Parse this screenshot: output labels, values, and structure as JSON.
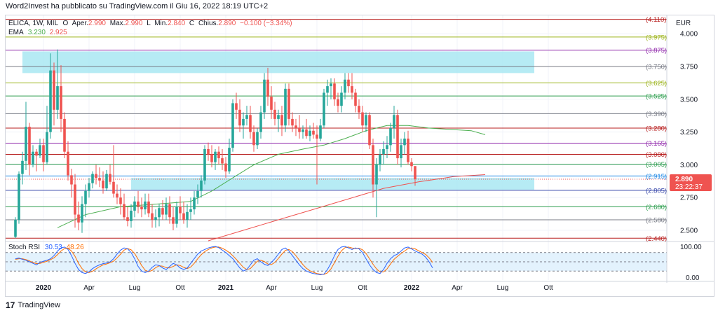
{
  "header": {
    "publisher_text": "Word2Invest ha pubblicato su TradingView.com il Giu 16, 2022 18:19 UTC+2",
    "symbol_line": "ELICA, 1W, MIL",
    "ohlc": {
      "o_label": "O",
      "open_label": "Aper.",
      "open": "2.990",
      "max_label": "Max.",
      "high": "2.990",
      "l_label": "L",
      "min_label": "Min.",
      "low": "2.840",
      "c_label": "C",
      "close_label": "Chius.",
      "close": "2.890",
      "change": "−0.100 (−3.34%)"
    },
    "ema": {
      "label": "EMA",
      "v1": "3.230",
      "v2": "2.925"
    },
    "stoch": {
      "label": "Stoch RSI",
      "k": "30.53",
      "d": "48.26"
    }
  },
  "footer": {
    "brand": "TradingView",
    "logo_glyph": "17"
  },
  "colors": {
    "up": "#26a69a",
    "down": "#ef5350",
    "zone": "#a9e7f2",
    "ema_fast": "#4caf50",
    "ema_slow": "#ef5350",
    "stoch_k": "#2962ff",
    "stoch_d": "#ff6d00",
    "stoch_band": "#e3f2fd",
    "grid": "#f0f3fa",
    "axis_text": "#131722"
  },
  "chart_data": {
    "type": "candlestick",
    "currency_label": "EUR",
    "price_axis_ticks": [
      2.5,
      2.75,
      3.0,
      3.25,
      3.5,
      3.75,
      4.0
    ],
    "price_axis_labels": [
      "2.500",
      "2.750",
      "3.000",
      "3.250",
      "3.500",
      "3.750",
      "4.000"
    ],
    "ylim": [
      2.42,
      4.14
    ],
    "time_labels": [
      {
        "label": "2020",
        "bar": 8,
        "bold": true
      },
      {
        "label": "Apr",
        "bar": 21
      },
      {
        "label": "Lug",
        "bar": 34
      },
      {
        "label": "Ott",
        "bar": 47
      },
      {
        "label": "2021",
        "bar": 60,
        "bold": true
      },
      {
        "label": "Apr",
        "bar": 73
      },
      {
        "label": "Lug",
        "bar": 86
      },
      {
        "label": "Ott",
        "bar": 99
      },
      {
        "label": "2022",
        "bar": 113,
        "bold": true
      },
      {
        "label": "Apr",
        "bar": 126
      },
      {
        "label": "Lug",
        "bar": 139
      },
      {
        "label": "Ott",
        "bar": 152
      }
    ],
    "levels": [
      {
        "value": 4.11,
        "label": "(4.110)",
        "color": "#b71c1c"
      },
      {
        "value": 3.975,
        "label": "(3.975)",
        "color": "#9cb31a"
      },
      {
        "value": 3.875,
        "label": "(3.875)",
        "color": "#8e24aa"
      },
      {
        "value": 3.75,
        "label": "(3.750)",
        "color": "#787b86"
      },
      {
        "value": 3.625,
        "label": "(3.625)",
        "color": "#9cb31a"
      },
      {
        "value": 3.525,
        "label": "(3.525)",
        "color": "#2e9e4f"
      },
      {
        "value": 3.39,
        "label": "(3.390)",
        "color": "#787b86"
      },
      {
        "value": 3.28,
        "label": "(3.280)",
        "color": "#b71c1c"
      },
      {
        "value": 3.165,
        "label": "(3.165)",
        "color": "#8e24aa"
      },
      {
        "value": 3.08,
        "label": "(3.080)",
        "color": "#b71c1c"
      },
      {
        "value": 3.005,
        "label": "(3.005)",
        "color": "#2e9e4f"
      },
      {
        "value": 2.915,
        "label": "(2.915)",
        "color": "#1e88e5"
      },
      {
        "value": 2.805,
        "label": "(2.805)",
        "color": "#3949ab"
      },
      {
        "value": 2.68,
        "label": "(2.680)",
        "color": "#2e9e4f"
      },
      {
        "value": 2.58,
        "label": "(2.580)",
        "color": "#787b86"
      },
      {
        "value": 2.44,
        "label": "(2.440)",
        "color": "#b71c1c"
      }
    ],
    "zones": [
      {
        "from_bar": 2,
        "to_bar": 148,
        "low": 3.7,
        "high": 3.865
      },
      {
        "from_bar": 33,
        "to_bar": 148,
        "low": 2.81,
        "high": 2.9
      }
    ],
    "current_price": {
      "value": 2.89,
      "label": "2.890",
      "countdown": "23:22:37"
    },
    "bars": [
      {
        "o": 2.45,
        "h": 2.6,
        "l": 2.44,
        "c": 2.58
      },
      {
        "o": 2.58,
        "h": 2.95,
        "l": 2.55,
        "c": 2.93
      },
      {
        "o": 2.93,
        "h": 3.1,
        "l": 2.85,
        "c": 3.03
      },
      {
        "o": 3.03,
        "h": 3.48,
        "l": 2.96,
        "c": 3.29
      },
      {
        "o": 3.29,
        "h": 3.32,
        "l": 2.92,
        "c": 3.0
      },
      {
        "o": 3.0,
        "h": 3.15,
        "l": 2.98,
        "c": 3.1
      },
      {
        "o": 3.1,
        "h": 3.12,
        "l": 2.95,
        "c": 3.07
      },
      {
        "o": 3.07,
        "h": 3.2,
        "l": 3.05,
        "c": 3.15
      },
      {
        "o": 3.15,
        "h": 3.2,
        "l": 2.95,
        "c": 3.02
      },
      {
        "o": 3.02,
        "h": 3.45,
        "l": 3.0,
        "c": 3.25
      },
      {
        "o": 3.25,
        "h": 3.85,
        "l": 3.2,
        "c": 3.72
      },
      {
        "o": 3.72,
        "h": 3.78,
        "l": 3.3,
        "c": 3.42
      },
      {
        "o": 3.42,
        "h": 3.88,
        "l": 3.35,
        "c": 3.6
      },
      {
        "o": 3.6,
        "h": 3.76,
        "l": 3.25,
        "c": 3.35
      },
      {
        "o": 3.35,
        "h": 3.4,
        "l": 3.05,
        "c": 3.1
      },
      {
        "o": 3.1,
        "h": 3.18,
        "l": 2.88,
        "c": 2.92
      },
      {
        "o": 2.92,
        "h": 2.97,
        "l": 2.75,
        "c": 2.85
      },
      {
        "o": 2.85,
        "h": 2.93,
        "l": 2.52,
        "c": 2.62
      },
      {
        "o": 2.62,
        "h": 2.72,
        "l": 2.5,
        "c": 2.56
      },
      {
        "o": 2.56,
        "h": 2.76,
        "l": 2.48,
        "c": 2.7
      },
      {
        "o": 2.7,
        "h": 2.85,
        "l": 2.6,
        "c": 2.8
      },
      {
        "o": 2.8,
        "h": 2.9,
        "l": 2.75,
        "c": 2.86
      },
      {
        "o": 2.86,
        "h": 2.95,
        "l": 2.82,
        "c": 2.93
      },
      {
        "o": 2.93,
        "h": 3.0,
        "l": 2.85,
        "c": 2.9
      },
      {
        "o": 2.9,
        "h": 2.98,
        "l": 2.83,
        "c": 2.88
      },
      {
        "o": 2.88,
        "h": 2.95,
        "l": 2.78,
        "c": 2.82
      },
      {
        "o": 2.82,
        "h": 2.96,
        "l": 2.8,
        "c": 2.93
      },
      {
        "o": 2.93,
        "h": 3.0,
        "l": 2.85,
        "c": 2.87
      },
      {
        "o": 2.87,
        "h": 3.15,
        "l": 2.75,
        "c": 2.78
      },
      {
        "o": 2.78,
        "h": 2.85,
        "l": 2.7,
        "c": 2.75
      },
      {
        "o": 2.75,
        "h": 2.82,
        "l": 2.62,
        "c": 2.7
      },
      {
        "o": 2.7,
        "h": 2.78,
        "l": 2.58,
        "c": 2.6
      },
      {
        "o": 2.6,
        "h": 2.68,
        "l": 2.53,
        "c": 2.57
      },
      {
        "o": 2.57,
        "h": 2.7,
        "l": 2.52,
        "c": 2.65
      },
      {
        "o": 2.65,
        "h": 2.76,
        "l": 2.6,
        "c": 2.72
      },
      {
        "o": 2.72,
        "h": 2.8,
        "l": 2.63,
        "c": 2.68
      },
      {
        "o": 2.68,
        "h": 2.75,
        "l": 2.6,
        "c": 2.66
      },
      {
        "o": 2.66,
        "h": 2.78,
        "l": 2.62,
        "c": 2.72
      },
      {
        "o": 2.72,
        "h": 2.78,
        "l": 2.6,
        "c": 2.63
      },
      {
        "o": 2.63,
        "h": 2.7,
        "l": 2.52,
        "c": 2.58
      },
      {
        "o": 2.58,
        "h": 2.66,
        "l": 2.52,
        "c": 2.6
      },
      {
        "o": 2.6,
        "h": 2.7,
        "l": 2.53,
        "c": 2.67
      },
      {
        "o": 2.67,
        "h": 2.73,
        "l": 2.58,
        "c": 2.62
      },
      {
        "o": 2.62,
        "h": 2.75,
        "l": 2.58,
        "c": 2.7
      },
      {
        "o": 2.7,
        "h": 2.76,
        "l": 2.55,
        "c": 2.6
      },
      {
        "o": 2.6,
        "h": 2.68,
        "l": 2.5,
        "c": 2.55
      },
      {
        "o": 2.55,
        "h": 2.72,
        "l": 2.52,
        "c": 2.68
      },
      {
        "o": 2.68,
        "h": 2.76,
        "l": 2.58,
        "c": 2.63
      },
      {
        "o": 2.63,
        "h": 2.72,
        "l": 2.55,
        "c": 2.58
      },
      {
        "o": 2.58,
        "h": 2.7,
        "l": 2.52,
        "c": 2.64
      },
      {
        "o": 2.64,
        "h": 2.75,
        "l": 2.58,
        "c": 2.66
      },
      {
        "o": 2.66,
        "h": 2.8,
        "l": 2.62,
        "c": 2.75
      },
      {
        "o": 2.75,
        "h": 2.85,
        "l": 2.7,
        "c": 2.8
      },
      {
        "o": 2.8,
        "h": 2.92,
        "l": 2.75,
        "c": 2.88
      },
      {
        "o": 2.88,
        "h": 3.15,
        "l": 2.85,
        "c": 3.12
      },
      {
        "o": 3.12,
        "h": 3.17,
        "l": 3.03,
        "c": 3.08
      },
      {
        "o": 3.08,
        "h": 3.15,
        "l": 2.98,
        "c": 3.02
      },
      {
        "o": 3.02,
        "h": 3.12,
        "l": 2.96,
        "c": 3.1
      },
      {
        "o": 3.1,
        "h": 3.14,
        "l": 3.0,
        "c": 3.05
      },
      {
        "o": 3.05,
        "h": 3.12,
        "l": 2.96,
        "c": 3.01
      },
      {
        "o": 3.01,
        "h": 3.06,
        "l": 2.9,
        "c": 2.95
      },
      {
        "o": 2.95,
        "h": 3.2,
        "l": 2.93,
        "c": 3.13
      },
      {
        "o": 3.13,
        "h": 3.5,
        "l": 3.1,
        "c": 3.47
      },
      {
        "o": 3.47,
        "h": 3.55,
        "l": 3.35,
        "c": 3.42
      },
      {
        "o": 3.42,
        "h": 3.5,
        "l": 3.25,
        "c": 3.3
      },
      {
        "o": 3.3,
        "h": 3.4,
        "l": 3.2,
        "c": 3.35
      },
      {
        "o": 3.35,
        "h": 3.45,
        "l": 3.3,
        "c": 3.38
      },
      {
        "o": 3.38,
        "h": 3.45,
        "l": 3.2,
        "c": 3.25
      },
      {
        "o": 3.25,
        "h": 3.3,
        "l": 3.1,
        "c": 3.15
      },
      {
        "o": 3.15,
        "h": 3.28,
        "l": 3.12,
        "c": 3.25
      },
      {
        "o": 3.25,
        "h": 3.45,
        "l": 3.2,
        "c": 3.4
      },
      {
        "o": 3.4,
        "h": 3.7,
        "l": 3.35,
        "c": 3.65
      },
      {
        "o": 3.65,
        "h": 3.74,
        "l": 3.45,
        "c": 3.52
      },
      {
        "o": 3.52,
        "h": 3.6,
        "l": 3.35,
        "c": 3.42
      },
      {
        "o": 3.42,
        "h": 3.48,
        "l": 3.3,
        "c": 3.35
      },
      {
        "o": 3.35,
        "h": 3.42,
        "l": 3.25,
        "c": 3.38
      },
      {
        "o": 3.38,
        "h": 3.45,
        "l": 3.22,
        "c": 3.3
      },
      {
        "o": 3.3,
        "h": 3.62,
        "l": 3.25,
        "c": 3.58
      },
      {
        "o": 3.58,
        "h": 3.62,
        "l": 3.3,
        "c": 3.35
      },
      {
        "o": 3.35,
        "h": 3.4,
        "l": 3.25,
        "c": 3.3
      },
      {
        "o": 3.3,
        "h": 3.35,
        "l": 3.22,
        "c": 3.28
      },
      {
        "o": 3.28,
        "h": 3.38,
        "l": 3.2,
        "c": 3.25
      },
      {
        "o": 3.25,
        "h": 3.3,
        "l": 3.2,
        "c": 3.27
      },
      {
        "o": 3.27,
        "h": 3.35,
        "l": 3.2,
        "c": 3.22
      },
      {
        "o": 3.22,
        "h": 3.3,
        "l": 3.18,
        "c": 3.26
      },
      {
        "o": 3.26,
        "h": 3.32,
        "l": 3.2,
        "c": 3.23
      },
      {
        "o": 3.23,
        "h": 3.3,
        "l": 2.85,
        "c": 3.2
      },
      {
        "o": 3.2,
        "h": 3.35,
        "l": 3.18,
        "c": 3.3
      },
      {
        "o": 3.3,
        "h": 3.58,
        "l": 3.28,
        "c": 3.55
      },
      {
        "o": 3.55,
        "h": 3.65,
        "l": 3.45,
        "c": 3.6
      },
      {
        "o": 3.6,
        "h": 3.66,
        "l": 3.5,
        "c": 3.62
      },
      {
        "o": 3.62,
        "h": 3.66,
        "l": 3.45,
        "c": 3.5
      },
      {
        "o": 3.5,
        "h": 3.55,
        "l": 3.4,
        "c": 3.45
      },
      {
        "o": 3.45,
        "h": 3.6,
        "l": 3.4,
        "c": 3.55
      },
      {
        "o": 3.55,
        "h": 3.7,
        "l": 3.5,
        "c": 3.65
      },
      {
        "o": 3.65,
        "h": 3.7,
        "l": 3.55,
        "c": 3.6
      },
      {
        "o": 3.6,
        "h": 3.7,
        "l": 3.5,
        "c": 3.55
      },
      {
        "o": 3.55,
        "h": 3.58,
        "l": 3.4,
        "c": 3.45
      },
      {
        "o": 3.45,
        "h": 3.5,
        "l": 3.35,
        "c": 3.4
      },
      {
        "o": 3.4,
        "h": 3.45,
        "l": 3.25,
        "c": 3.3
      },
      {
        "o": 3.3,
        "h": 3.4,
        "l": 3.25,
        "c": 3.38
      },
      {
        "o": 3.38,
        "h": 3.4,
        "l": 3.12,
        "c": 3.15
      },
      {
        "o": 3.15,
        "h": 3.2,
        "l": 2.75,
        "c": 2.85
      },
      {
        "o": 2.85,
        "h": 3.05,
        "l": 2.6,
        "c": 3.0
      },
      {
        "o": 3.0,
        "h": 3.12,
        "l": 2.95,
        "c": 3.08
      },
      {
        "o": 3.08,
        "h": 3.18,
        "l": 3.0,
        "c": 3.12
      },
      {
        "o": 3.12,
        "h": 3.22,
        "l": 3.05,
        "c": 3.15
      },
      {
        "o": 3.15,
        "h": 3.32,
        "l": 3.1,
        "c": 3.28
      },
      {
        "o": 3.28,
        "h": 3.45,
        "l": 3.2,
        "c": 3.38
      },
      {
        "o": 3.38,
        "h": 3.42,
        "l": 3.0,
        "c": 3.05
      },
      {
        "o": 3.05,
        "h": 3.2,
        "l": 2.98,
        "c": 3.15
      },
      {
        "o": 3.15,
        "h": 3.25,
        "l": 3.08,
        "c": 3.2
      },
      {
        "o": 3.2,
        "h": 3.26,
        "l": 3.0,
        "c": 3.02
      },
      {
        "o": 3.02,
        "h": 3.05,
        "l": 2.95,
        "c": 2.99
      },
      {
        "o": 2.99,
        "h": 2.99,
        "l": 2.84,
        "c": 2.89
      }
    ],
    "ema_fast_label": "EMA 3.230",
    "ema_slow_label": "EMA 2.925",
    "ema_fast": [
      {
        "bar": 12,
        "v": 2.52
      },
      {
        "bar": 20,
        "v": 2.62
      },
      {
        "bar": 30,
        "v": 2.68
      },
      {
        "bar": 40,
        "v": 2.7
      },
      {
        "bar": 50,
        "v": 2.72
      },
      {
        "bar": 56,
        "v": 2.8
      },
      {
        "bar": 62,
        "v": 2.9
      },
      {
        "bar": 68,
        "v": 3.0
      },
      {
        "bar": 75,
        "v": 3.08
      },
      {
        "bar": 82,
        "v": 3.12
      },
      {
        "bar": 88,
        "v": 3.15
      },
      {
        "bar": 94,
        "v": 3.2
      },
      {
        "bar": 100,
        "v": 3.26
      },
      {
        "bar": 106,
        "v": 3.3
      },
      {
        "bar": 112,
        "v": 3.3
      },
      {
        "bar": 118,
        "v": 3.28
      },
      {
        "bar": 124,
        "v": 3.27
      },
      {
        "bar": 130,
        "v": 3.26
      },
      {
        "bar": 134,
        "v": 3.23
      }
    ],
    "ema_slow": [
      {
        "bar": 55,
        "v": 2.42
      },
      {
        "bar": 65,
        "v": 2.5
      },
      {
        "bar": 75,
        "v": 2.58
      },
      {
        "bar": 85,
        "v": 2.66
      },
      {
        "bar": 95,
        "v": 2.74
      },
      {
        "bar": 105,
        "v": 2.82
      },
      {
        "bar": 115,
        "v": 2.87
      },
      {
        "bar": 125,
        "v": 2.91
      },
      {
        "bar": 134,
        "v": 2.925
      }
    ],
    "stoch_rsi": {
      "ylim": [
        0,
        100
      ],
      "axis_labels": [
        "100.00",
        "0.00"
      ],
      "band_upper": 80,
      "band_mid": 50,
      "band_lower": 20,
      "k": [
        60,
        62,
        58,
        55,
        50,
        45,
        40,
        48,
        52,
        55,
        60,
        70,
        85,
        95,
        98,
        90,
        70,
        45,
        25,
        15,
        12,
        18,
        28,
        35,
        40,
        44,
        46,
        50,
        60,
        75,
        88,
        95,
        92,
        80,
        60,
        35,
        20,
        15,
        20,
        32,
        40,
        38,
        30,
        25,
        35,
        45,
        40,
        30,
        25,
        30,
        45,
        60,
        75,
        85,
        90,
        95,
        98,
        100,
        96,
        88,
        80,
        70,
        60,
        45,
        30,
        20,
        25,
        40,
        55,
        60,
        50,
        42,
        38,
        48,
        60,
        75,
        90,
        95,
        85,
        70,
        55,
        40,
        28,
        20,
        15,
        12,
        10,
        8,
        10,
        25,
        45,
        70,
        90,
        98,
        100,
        95,
        90,
        95,
        92,
        80,
        60,
        40,
        25,
        15,
        12,
        25,
        45,
        60,
        70,
        75,
        85,
        95,
        98,
        92,
        85,
        80,
        75,
        65,
        50,
        30
      ],
      "d": [
        58,
        60,
        60,
        57,
        53,
        48,
        44,
        45,
        48,
        52,
        57,
        63,
        73,
        85,
        93,
        94,
        85,
        68,
        45,
        28,
        17,
        15,
        19,
        27,
        34,
        40,
        43,
        47,
        52,
        63,
        75,
        88,
        93,
        89,
        77,
        58,
        38,
        23,
        18,
        22,
        31,
        37,
        36,
        31,
        30,
        35,
        40,
        38,
        32,
        28,
        33,
        45,
        60,
        73,
        83,
        90,
        95,
        98,
        98,
        94,
        88,
        80,
        70,
        58,
        45,
        32,
        25,
        28,
        40,
        52,
        55,
        51,
        43,
        41,
        48,
        61,
        75,
        87,
        90,
        83,
        70,
        55,
        41,
        29,
        21,
        16,
        12,
        10,
        9,
        14,
        27,
        47,
        68,
        86,
        96,
        98,
        95,
        93,
        94,
        89,
        77,
        60,
        42,
        27,
        17,
        17,
        27,
        43,
        58,
        68,
        77,
        85,
        93,
        95,
        92,
        86,
        80,
        74,
        63,
        48
      ]
    }
  }
}
